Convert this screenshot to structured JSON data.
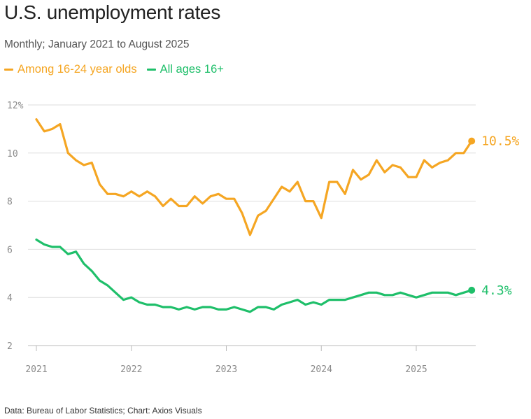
{
  "title": "U.S. unemployment rates",
  "subtitle": "Monthly; January 2021 to August 2025",
  "source": "Data: Bureau of Labor Statistics; Chart: Axios Visuals",
  "colors": {
    "youth": "#f5a623",
    "all": "#1fbf6a",
    "grid": "#dddddd",
    "axis": "#bbbbbb"
  },
  "chart_data": {
    "type": "line",
    "title": "U.S. unemployment rates",
    "xlabel": "",
    "ylabel": "",
    "ylim": [
      2,
      12
    ],
    "yticks": [
      2,
      4,
      6,
      8,
      10,
      12
    ],
    "ytick_labels": [
      "2",
      "4",
      "6",
      "8",
      "10",
      "12%"
    ],
    "xticks": [
      {
        "label": "2021",
        "index": 0
      },
      {
        "label": "2022",
        "index": 12
      },
      {
        "label": "2023",
        "index": 24
      },
      {
        "label": "2024",
        "index": 36
      },
      {
        "label": "2025",
        "index": 48
      }
    ],
    "series": [
      {
        "key": "youth",
        "name": "Among 16-24 year olds",
        "end_label": "10.5%",
        "values": [
          11.4,
          10.9,
          11.0,
          11.2,
          10.0,
          9.7,
          9.5,
          9.6,
          8.7,
          8.3,
          8.3,
          8.2,
          8.4,
          8.2,
          8.4,
          8.2,
          7.8,
          8.1,
          7.8,
          7.8,
          8.2,
          7.9,
          8.2,
          8.3,
          8.1,
          8.1,
          7.5,
          6.6,
          7.4,
          7.6,
          8.1,
          8.6,
          8.4,
          8.8,
          8.0,
          8.0,
          7.3,
          8.8,
          8.8,
          8.3,
          9.3,
          8.9,
          9.1,
          9.7,
          9.2,
          9.5,
          9.4,
          9.0,
          9.0,
          9.7,
          9.4,
          9.6,
          9.7,
          10.0,
          10.0,
          10.5
        ]
      },
      {
        "key": "all",
        "name": "All ages 16+",
        "end_label": "4.3%",
        "values": [
          6.4,
          6.2,
          6.1,
          6.1,
          5.8,
          5.9,
          5.4,
          5.1,
          4.7,
          4.5,
          4.2,
          3.9,
          4.0,
          3.8,
          3.7,
          3.7,
          3.6,
          3.6,
          3.5,
          3.6,
          3.5,
          3.6,
          3.6,
          3.5,
          3.5,
          3.6,
          3.5,
          3.4,
          3.6,
          3.6,
          3.5,
          3.7,
          3.8,
          3.9,
          3.7,
          3.8,
          3.7,
          3.9,
          3.9,
          3.9,
          4.0,
          4.1,
          4.2,
          4.2,
          4.1,
          4.1,
          4.2,
          4.1,
          4.0,
          4.1,
          4.2,
          4.2,
          4.2,
          4.1,
          4.2,
          4.3
        ]
      }
    ]
  }
}
